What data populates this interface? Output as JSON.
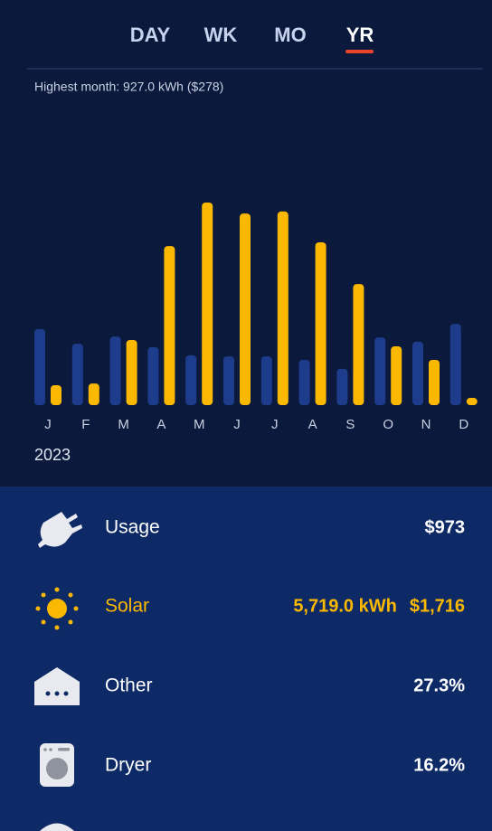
{
  "tabs": [
    "DAY",
    "WK",
    "MO",
    "YR"
  ],
  "chart_data": {
    "type": "bar",
    "subtitle": "Highest month: 927.0 kWh ($278)",
    "categories": [
      "J",
      "F",
      "M",
      "A",
      "M",
      "J",
      "J",
      "A",
      "S",
      "O",
      "N",
      "D"
    ],
    "year": "2023",
    "series": [
      {
        "color": "#1d3c8c",
        "values": [
          348,
          281,
          314,
          265,
          228,
          223,
          223,
          207,
          166,
          310,
          290,
          372
        ]
      },
      {
        "color": "#fbb800",
        "values": [
          91,
          99,
          298,
          728,
          927,
          877,
          886,
          745,
          554,
          269,
          207,
          33
        ]
      }
    ]
  },
  "rows": [
    {
      "label": "Usage",
      "values": [
        "$973"
      ]
    },
    {
      "label": "Solar",
      "values": [
        "5,719.0 kWh",
        "$1,716"
      ]
    },
    {
      "label": "Other",
      "values": [
        "27.3%"
      ]
    },
    {
      "label": "Dryer",
      "values": [
        "16.2%"
      ]
    }
  ]
}
